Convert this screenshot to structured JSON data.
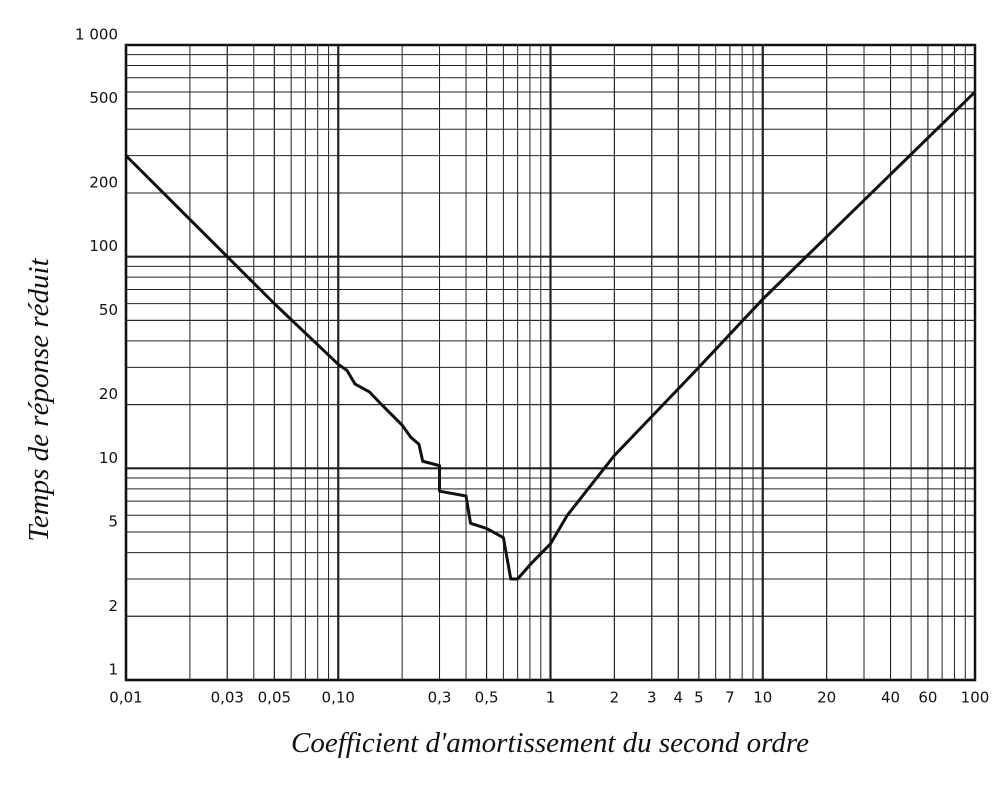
{
  "chart_data": {
    "type": "line",
    "x_label": "Coefficient d'amortissement du second ordre",
    "y_label": "Temps de réponse réduit",
    "x": [
      0.01,
      0.02,
      0.05,
      0.1,
      0.11,
      0.12,
      0.14,
      0.16,
      0.2,
      0.22,
      0.24,
      0.25,
      0.3,
      0.3,
      0.4,
      0.42,
      0.5,
      0.6,
      0.65,
      0.7,
      0.8,
      1,
      1.2,
      2,
      5,
      10,
      100
    ],
    "series": [
      {
        "color": "#111111",
        "values": [
          300,
          150,
          60,
          31,
          29,
          25,
          23,
          20,
          16,
          14,
          13,
          10.8,
          10.3,
          7.8,
          7.4,
          5.5,
          5.2,
          4.7,
          3.0,
          3.0,
          3.5,
          4.4,
          6,
          11.5,
          30,
          63,
          600
        ]
      }
    ],
    "xscale": "log",
    "yscale": "log",
    "xlim": [
      0.01,
      100
    ],
    "ylim": [
      1,
      1000
    ],
    "xticks": [
      {
        "value": 0.01,
        "label": "0,01"
      },
      {
        "value": 0.03,
        "label": "0,03"
      },
      {
        "value": 0.05,
        "label": "0,05"
      },
      {
        "value": 0.1,
        "label": "0,10"
      },
      {
        "value": 0.3,
        "label": "0,3"
      },
      {
        "value": 0.5,
        "label": "0,5"
      },
      1,
      2,
      3,
      4,
      5,
      7,
      10,
      20,
      40,
      60,
      100
    ],
    "yticks": [
      1,
      2,
      5,
      10,
      20,
      50,
      100,
      200,
      500,
      {
        "value": 1000,
        "label": "1 000"
      }
    ],
    "grid": true,
    "minor_grid": true
  }
}
